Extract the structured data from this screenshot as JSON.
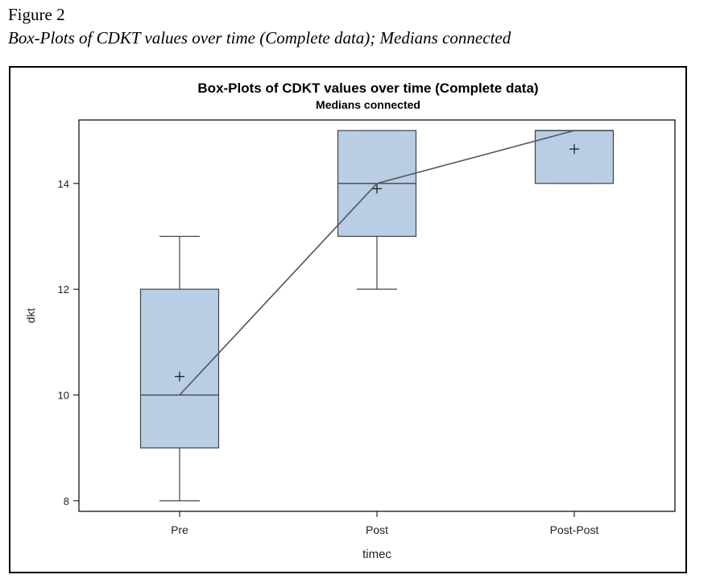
{
  "figure": {
    "label": "Figure 2",
    "caption": "Box-Plots of CDKT values over time (Complete data); Medians connected"
  },
  "chart_data": {
    "type": "box",
    "title": "Box-Plots of CDKT values over time (Complete data)",
    "subtitle": "Medians connected",
    "xlabel": "timec",
    "ylabel": "dkt",
    "categories": [
      "Pre",
      "Post",
      "Post-Post"
    ],
    "ylim": [
      7.8,
      15.2
    ],
    "yticks": [
      8,
      10,
      12,
      14
    ],
    "ytick_labels": [
      "8",
      "10",
      "12",
      "14"
    ],
    "boxes": [
      {
        "category": "Pre",
        "min": 8,
        "q1": 9,
        "median": 10,
        "q3": 12,
        "max": 13,
        "mean": 10.35
      },
      {
        "category": "Post",
        "min": 12,
        "q1": 13,
        "median": 14,
        "q3": 15,
        "max": 15,
        "mean": 13.9
      },
      {
        "category": "Post-Post",
        "min": 14,
        "q1": 14,
        "median": 15,
        "q3": 15,
        "max": 15,
        "mean": 14.65
      }
    ],
    "medians_connected": true,
    "colors": {
      "box_fill": "#b9cde5",
      "stroke": "#444444",
      "line": "#555555"
    }
  }
}
